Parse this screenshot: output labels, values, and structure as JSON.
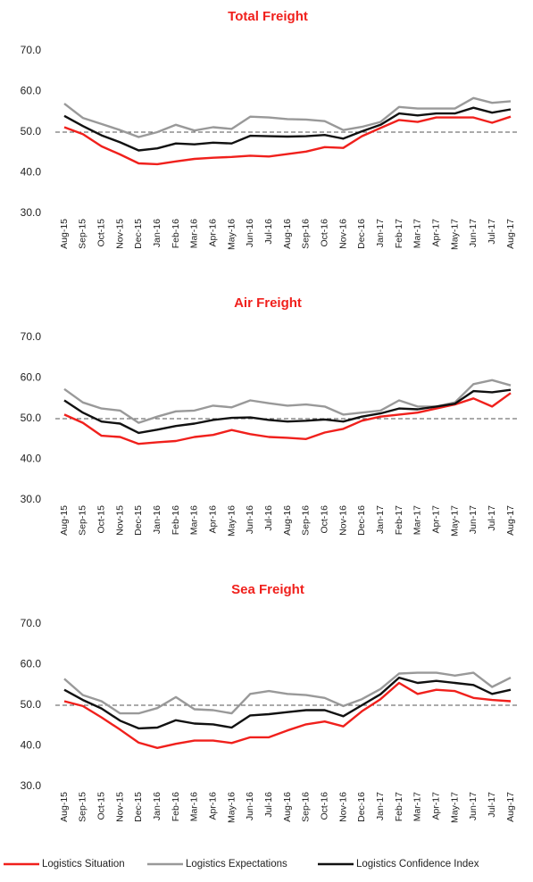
{
  "chart_data": [
    {
      "type": "line",
      "title": "Total Freight",
      "categories": [
        "Aug-15",
        "Sep-15",
        "Oct-15",
        "Nov-15",
        "Dec-15",
        "Jan-16",
        "Feb-16",
        "Mar-16",
        "Apr-16",
        "May-16",
        "Jun-16",
        "Jul-16",
        "Aug-16",
        "Sep-16",
        "Oct-16",
        "Nov-16",
        "Dec-16",
        "Jan-17",
        "Feb-17",
        "Mar-17",
        "Apr-17",
        "May-17",
        "Jun-17",
        "Jul-17",
        "Aug-17"
      ],
      "series": [
        {
          "name": "Logistics Situation",
          "color": "#f0201c",
          "values": [
            51.2,
            49.5,
            46.5,
            44.5,
            42.3,
            42.1,
            42.8,
            43.4,
            43.7,
            43.9,
            44.2,
            44.0,
            44.6,
            45.2,
            46.3,
            46.1,
            49.0,
            51.0,
            53.0,
            52.5,
            53.6,
            53.6,
            53.6,
            52.3,
            53.8
          ]
        },
        {
          "name": "Logistics Expectations",
          "color": "#999999",
          "values": [
            57.0,
            53.5,
            52.0,
            50.5,
            48.8,
            50.0,
            51.8,
            50.4,
            51.2,
            50.8,
            53.8,
            53.6,
            53.2,
            53.1,
            52.7,
            50.5,
            51.3,
            52.5,
            56.2,
            55.8,
            55.8,
            55.8,
            58.4,
            57.2,
            57.6
          ]
        },
        {
          "name": "Logistics Confidence Index",
          "color": "#111111",
          "values": [
            54.0,
            51.5,
            49.2,
            47.5,
            45.5,
            46.0,
            47.2,
            47.0,
            47.4,
            47.2,
            49.1,
            49.0,
            48.9,
            49.0,
            49.3,
            48.4,
            50.2,
            51.8,
            54.6,
            54.1,
            54.6,
            54.6,
            56.0,
            54.8,
            55.6
          ]
        }
      ],
      "ylim": [
        30,
        70
      ],
      "yticks": [
        {
          "value": 30,
          "label": "30.0"
        },
        {
          "value": 40,
          "label": "40.0"
        },
        {
          "value": 50,
          "label": "50.0"
        },
        {
          "value": 60,
          "label": "60.0"
        },
        {
          "value": 70,
          "label": "70.0"
        }
      ],
      "hline": 50
    },
    {
      "type": "line",
      "title": "Air Freight",
      "categories": [
        "Aug-15",
        "Sep-15",
        "Oct-15",
        "Nov-15",
        "Dec-15",
        "Jan-16",
        "Feb-16",
        "Mar-16",
        "Apr-16",
        "May-16",
        "Jun-16",
        "Jul-16",
        "Aug-16",
        "Sep-16",
        "Oct-16",
        "Nov-16",
        "Dec-16",
        "Jan-17",
        "Feb-17",
        "Mar-17",
        "Apr-17",
        "May-17",
        "Jun-17",
        "Jul-17",
        "Aug-17"
      ],
      "series": [
        {
          "name": "Logistics Situation",
          "color": "#f0201c",
          "values": [
            51.0,
            49.0,
            45.8,
            45.5,
            43.8,
            44.2,
            44.5,
            45.5,
            46.0,
            47.2,
            46.2,
            45.5,
            45.3,
            45.0,
            46.6,
            47.5,
            49.5,
            50.5,
            51.0,
            51.5,
            52.5,
            53.5,
            55.0,
            53.0,
            56.3
          ]
        },
        {
          "name": "Logistics Expectations",
          "color": "#999999",
          "values": [
            57.3,
            54.0,
            52.5,
            52.0,
            49.0,
            50.5,
            51.8,
            52.0,
            53.2,
            52.8,
            54.5,
            53.8,
            53.2,
            53.5,
            53.0,
            51.0,
            51.5,
            52.0,
            54.5,
            53.0,
            53.0,
            54.0,
            58.5,
            59.5,
            58.2
          ]
        },
        {
          "name": "Logistics Confidence Index",
          "color": "#111111",
          "values": [
            54.5,
            51.5,
            49.3,
            48.8,
            46.5,
            47.3,
            48.2,
            48.8,
            49.7,
            50.2,
            50.3,
            49.7,
            49.3,
            49.5,
            49.8,
            49.3,
            50.5,
            51.3,
            52.5,
            52.3,
            53.0,
            53.7,
            56.8,
            56.5,
            57.1
          ]
        }
      ],
      "ylim": [
        30,
        70
      ],
      "yticks": [
        {
          "value": 30,
          "label": "30.0"
        },
        {
          "value": 40,
          "label": "40.0"
        },
        {
          "value": 50,
          "label": "50.0"
        },
        {
          "value": 60,
          "label": "60.0"
        },
        {
          "value": 70,
          "label": "70.0"
        }
      ],
      "hline": 50
    },
    {
      "type": "line",
      "title": "Sea Freight",
      "categories": [
        "Aug-15",
        "Sep-15",
        "Oct-15",
        "Nov-15",
        "Dec-15",
        "Jan-16",
        "Feb-16",
        "Mar-16",
        "Apr-16",
        "May-16",
        "Jun-16",
        "Jul-16",
        "Aug-16",
        "Sep-16",
        "Oct-16",
        "Nov-16",
        "Dec-16",
        "Jan-17",
        "Feb-17",
        "Mar-17",
        "Apr-17",
        "May-17",
        "Jun-17",
        "Jul-17",
        "Aug-17"
      ],
      "series": [
        {
          "name": "Logistics Situation",
          "color": "#f0201c",
          "values": [
            51.0,
            49.8,
            47.0,
            44.0,
            40.8,
            39.5,
            40.5,
            41.3,
            41.3,
            40.7,
            42.1,
            42.1,
            43.8,
            45.3,
            46.0,
            44.8,
            48.5,
            51.5,
            55.5,
            52.8,
            53.8,
            53.5,
            51.8,
            51.3,
            51.0
          ]
        },
        {
          "name": "Logistics Expectations",
          "color": "#999999",
          "values": [
            56.5,
            52.5,
            51.0,
            48.0,
            48.0,
            49.3,
            52.0,
            49.0,
            48.8,
            48.0,
            52.8,
            53.5,
            52.8,
            52.5,
            51.8,
            49.8,
            51.5,
            54.0,
            57.8,
            58.0,
            58.0,
            57.3,
            58.0,
            54.5,
            56.8
          ]
        },
        {
          "name": "Logistics Confidence Index",
          "color": "#111111",
          "values": [
            53.8,
            51.3,
            49.2,
            46.2,
            44.3,
            44.5,
            46.3,
            45.5,
            45.3,
            44.5,
            47.5,
            47.8,
            48.3,
            48.8,
            48.8,
            47.3,
            50.0,
            52.7,
            56.8,
            55.5,
            56.0,
            55.5,
            55.0,
            52.8,
            53.8
          ]
        }
      ],
      "ylim": [
        30,
        70
      ],
      "yticks": [
        {
          "value": 30,
          "label": "30.0"
        },
        {
          "value": 40,
          "label": "40.0"
        },
        {
          "value": 50,
          "label": "50.0"
        },
        {
          "value": 60,
          "label": "60.0"
        },
        {
          "value": 70,
          "label": "70.0"
        }
      ],
      "hline": 50
    }
  ]
}
